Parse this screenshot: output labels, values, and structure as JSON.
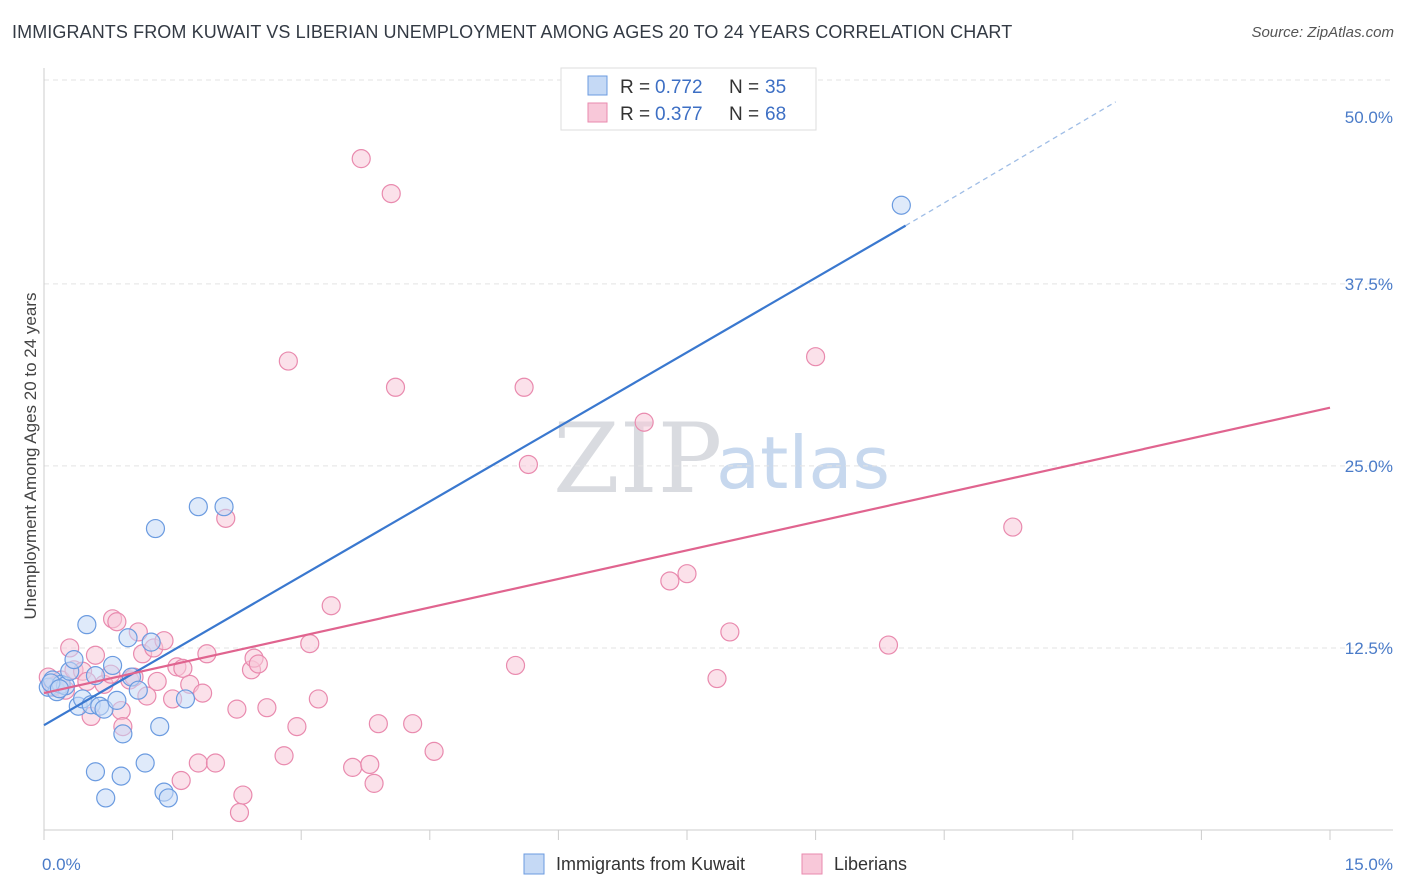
{
  "chart_data": {
    "type": "scatter",
    "title": "IMMIGRANTS FROM KUWAIT VS LIBERIAN UNEMPLOYMENT AMONG AGES 20 TO 24 YEARS CORRELATION CHART",
    "source": "Source: ZipAtlas.com",
    "ylabel": "Unemployment Among Ages 20 to 24 years",
    "xlabel": "",
    "xlim": [
      0,
      15
    ],
    "ylim": [
      0,
      50
    ],
    "x_ticks": [
      {
        "value": 0,
        "label": "0.0%"
      },
      {
        "value": 15,
        "label": "15.0%"
      }
    ],
    "y_ticks": [
      {
        "value": 12.5,
        "label": "12.5%"
      },
      {
        "value": 25,
        "label": "25.0%"
      },
      {
        "value": 37.5,
        "label": "37.5%"
      },
      {
        "value": 50,
        "label": "50.0%"
      }
    ],
    "legend": {
      "r_label": "R =",
      "n_label": "N ="
    },
    "series": [
      {
        "name": "Immigrants from Kuwait",
        "color": "#6b9be0",
        "fill": "#c5d9f5",
        "line_color": "#3a78cf",
        "R": "0.772",
        "N": "35",
        "trend": {
          "x0": 0,
          "y0": 7.2,
          "x1": 10.05,
          "y1": 41.5,
          "dash_to_x": 12.5,
          "dash_to_y": 50.0
        },
        "points": [
          [
            0.05,
            9.8
          ],
          [
            0.1,
            10.3
          ],
          [
            0.15,
            9.5
          ],
          [
            0.2,
            10.0
          ],
          [
            0.25,
            9.9
          ],
          [
            0.3,
            10.9
          ],
          [
            0.35,
            11.7
          ],
          [
            0.4,
            8.5
          ],
          [
            0.45,
            9.0
          ],
          [
            0.5,
            14.1
          ],
          [
            0.55,
            8.6
          ],
          [
            0.6,
            10.6
          ],
          [
            0.6,
            4.0
          ],
          [
            0.65,
            8.5
          ],
          [
            0.7,
            8.3
          ],
          [
            0.72,
            2.2
          ],
          [
            0.8,
            11.3
          ],
          [
            0.85,
            8.9
          ],
          [
            0.9,
            3.7
          ],
          [
            0.92,
            6.6
          ],
          [
            0.98,
            13.2
          ],
          [
            1.02,
            10.5
          ],
          [
            1.1,
            9.6
          ],
          [
            1.18,
            4.6
          ],
          [
            1.25,
            12.9
          ],
          [
            1.3,
            20.7
          ],
          [
            1.35,
            7.1
          ],
          [
            1.4,
            2.6
          ],
          [
            1.45,
            2.2
          ],
          [
            1.65,
            9.0
          ],
          [
            1.8,
            22.2
          ],
          [
            2.1,
            22.2
          ],
          [
            10.0,
            42.9
          ],
          [
            0.08,
            10.1
          ],
          [
            0.18,
            9.7
          ]
        ]
      },
      {
        "name": "Liberians",
        "color": "#e98aae",
        "fill": "#f8c8d9",
        "line_color": "#e0648f",
        "R": "0.377",
        "N": "68",
        "trend": {
          "x0": 0,
          "y0": 9.4,
          "x1": 15.0,
          "y1": 29.0
        },
        "points": [
          [
            0.05,
            10.5
          ],
          [
            0.1,
            9.8
          ],
          [
            0.2,
            10.3
          ],
          [
            0.25,
            9.6
          ],
          [
            0.3,
            12.5
          ],
          [
            0.35,
            11.0
          ],
          [
            0.45,
            10.9
          ],
          [
            0.5,
            10.2
          ],
          [
            0.55,
            7.8
          ],
          [
            0.6,
            12.0
          ],
          [
            0.7,
            10.0
          ],
          [
            0.78,
            10.7
          ],
          [
            0.8,
            14.5
          ],
          [
            0.85,
            14.3
          ],
          [
            0.9,
            8.2
          ],
          [
            0.92,
            7.1
          ],
          [
            1.0,
            10.3
          ],
          [
            1.05,
            10.5
          ],
          [
            1.1,
            13.6
          ],
          [
            1.15,
            12.1
          ],
          [
            1.2,
            9.2
          ],
          [
            1.28,
            12.5
          ],
          [
            1.32,
            10.2
          ],
          [
            1.4,
            13.0
          ],
          [
            1.5,
            9.0
          ],
          [
            1.55,
            11.2
          ],
          [
            1.6,
            3.4
          ],
          [
            1.62,
            11.1
          ],
          [
            1.7,
            10.0
          ],
          [
            1.8,
            4.6
          ],
          [
            1.85,
            9.4
          ],
          [
            1.9,
            12.1
          ],
          [
            2.0,
            4.6
          ],
          [
            2.12,
            21.4
          ],
          [
            2.25,
            8.3
          ],
          [
            2.28,
            1.2
          ],
          [
            2.32,
            2.4
          ],
          [
            2.42,
            11.0
          ],
          [
            2.45,
            11.8
          ],
          [
            2.5,
            11.4
          ],
          [
            2.6,
            8.4
          ],
          [
            2.8,
            5.1
          ],
          [
            2.85,
            32.2
          ],
          [
            2.95,
            7.1
          ],
          [
            3.1,
            12.8
          ],
          [
            3.2,
            9.0
          ],
          [
            3.35,
            15.4
          ],
          [
            3.6,
            4.3
          ],
          [
            3.7,
            46.1
          ],
          [
            3.8,
            4.5
          ],
          [
            3.85,
            3.2
          ],
          [
            3.9,
            7.3
          ],
          [
            4.05,
            43.7
          ],
          [
            4.1,
            30.4
          ],
          [
            4.3,
            7.3
          ],
          [
            4.55,
            5.4
          ],
          [
            5.5,
            11.3
          ],
          [
            5.6,
            30.4
          ],
          [
            5.65,
            25.1
          ],
          [
            7.0,
            28.0
          ],
          [
            7.3,
            17.1
          ],
          [
            7.5,
            17.6
          ],
          [
            7.85,
            10.4
          ],
          [
            8.0,
            13.6
          ],
          [
            9.0,
            32.5
          ],
          [
            9.85,
            12.7
          ],
          [
            11.3,
            20.8
          ],
          [
            0.12,
            9.9
          ]
        ]
      }
    ]
  }
}
